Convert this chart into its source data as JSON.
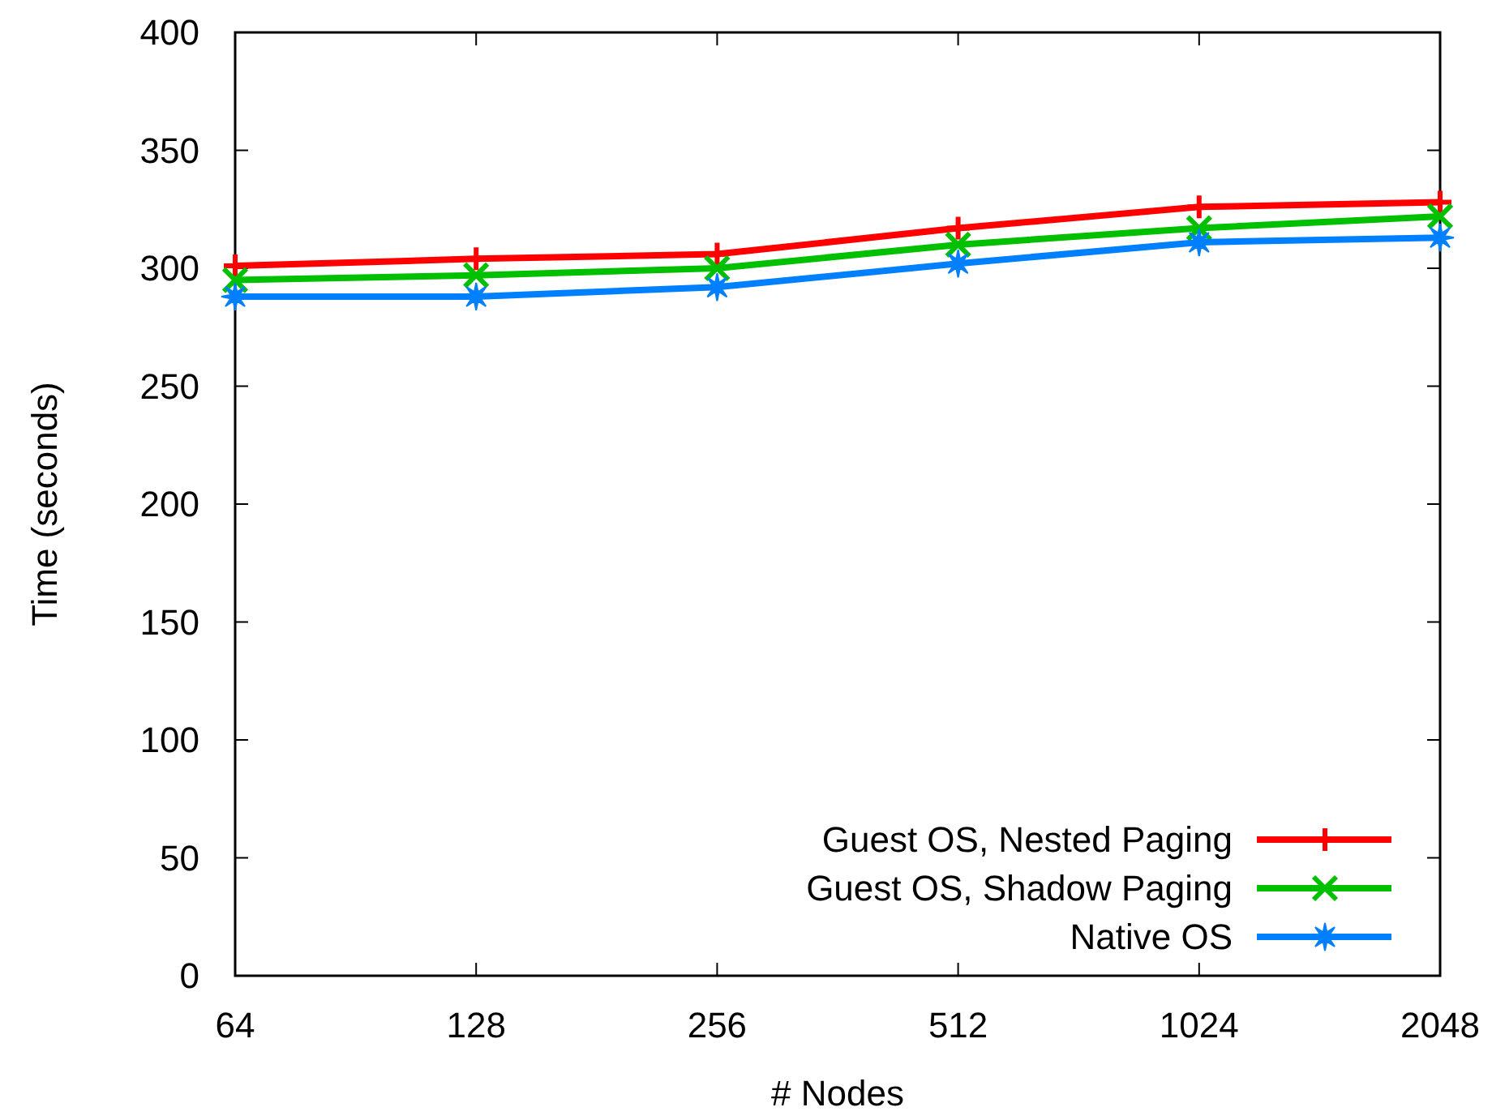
{
  "chart_data": {
    "type": "line",
    "xlabel": "# Nodes",
    "ylabel": "Time (seconds)",
    "categories": [
      "64",
      "128",
      "256",
      "512",
      "1024",
      "2048"
    ],
    "ylim": [
      0,
      400
    ],
    "yticks": [
      0,
      50,
      100,
      150,
      200,
      250,
      300,
      350,
      400
    ],
    "legend": "bottom right",
    "grid": false,
    "series": [
      {
        "name": "Guest OS, Nested Paging",
        "color": "#ff0000",
        "marker": "plus",
        "values": [
          301,
          304,
          306,
          317,
          326,
          328
        ]
      },
      {
        "name": "Guest OS, Shadow Paging",
        "color": "#00c000",
        "marker": "cross",
        "values": [
          295,
          297,
          300,
          310,
          317,
          322
        ]
      },
      {
        "name": "Native OS",
        "color": "#0080ff",
        "marker": "star",
        "values": [
          288,
          288,
          292,
          302,
          311,
          313
        ]
      }
    ]
  }
}
